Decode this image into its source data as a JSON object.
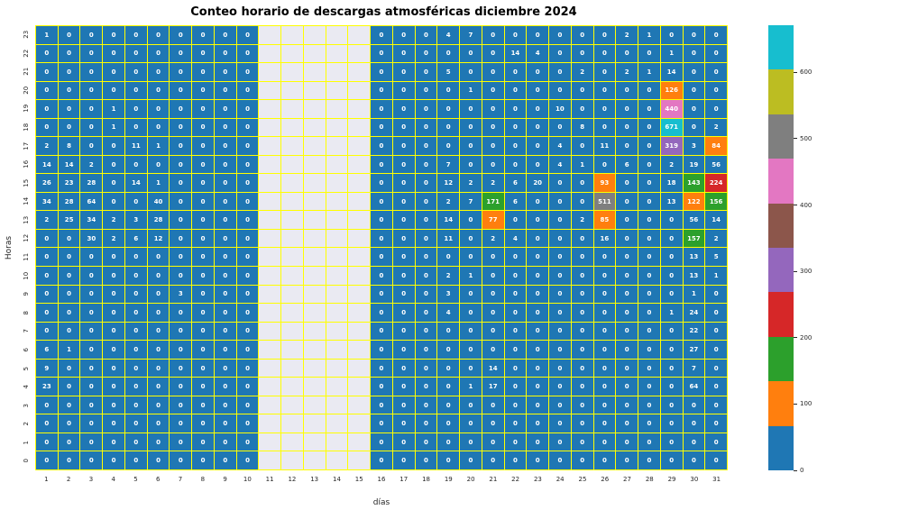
{
  "title": "Conteo horario de descargas atmosféricas diciembre 2024",
  "chart_data": {
    "type": "heatmap",
    "title": "Conteo horario de descargas atmosféricas diciembre 2024",
    "xlabel": "días",
    "ylabel": "Horas",
    "x": [
      1,
      2,
      3,
      4,
      5,
      6,
      7,
      8,
      9,
      10,
      11,
      12,
      13,
      14,
      15,
      16,
      17,
      18,
      19,
      20,
      21,
      22,
      23,
      24,
      25,
      26,
      27,
      28,
      29,
      30,
      31
    ],
    "y": [
      23,
      22,
      21,
      20,
      19,
      18,
      17,
      16,
      15,
      14,
      13,
      12,
      11,
      10,
      9,
      8,
      7,
      6,
      5,
      4,
      3,
      2,
      1,
      0
    ],
    "missing_days": [
      11,
      12,
      13,
      14,
      15
    ],
    "vmin": 0,
    "vmax": 671,
    "grid_on": true,
    "grid_color": "#ffff00",
    "missing_color": "#eaeaf2",
    "annotation_color": "#ffffff",
    "colormap": {
      "name": "tab10-discrete",
      "colors": [
        "#1f77b4",
        "#ff7f0e",
        "#2ca02c",
        "#d62728",
        "#9467bd",
        "#8c564b",
        "#e377c2",
        "#7f7f7f",
        "#bcbd22",
        "#17becf"
      ]
    },
    "colorbar_ticks": [
      0,
      100,
      200,
      300,
      400,
      500,
      600
    ],
    "legend_position": "right-colorbar",
    "values_by_hour_desc": [
      [
        1,
        0,
        0,
        0,
        0,
        0,
        0,
        0,
        0,
        0,
        null,
        null,
        null,
        null,
        null,
        0,
        0,
        0,
        4,
        7,
        0,
        0,
        0,
        0,
        0,
        0,
        2,
        1,
        0,
        0,
        0
      ],
      [
        0,
        0,
        0,
        0,
        0,
        0,
        0,
        0,
        0,
        0,
        null,
        null,
        null,
        null,
        null,
        0,
        0,
        0,
        0,
        0,
        0,
        14,
        4,
        0,
        0,
        0,
        0,
        0,
        1,
        0,
        0
      ],
      [
        0,
        0,
        0,
        0,
        0,
        0,
        0,
        0,
        0,
        0,
        null,
        null,
        null,
        null,
        null,
        0,
        0,
        0,
        5,
        0,
        0,
        0,
        0,
        0,
        2,
        0,
        2,
        1,
        14,
        0,
        0
      ],
      [
        0,
        0,
        0,
        0,
        0,
        0,
        0,
        0,
        0,
        0,
        null,
        null,
        null,
        null,
        null,
        0,
        0,
        0,
        0,
        1,
        0,
        0,
        0,
        0,
        0,
        0,
        0,
        0,
        126,
        0,
        0
      ],
      [
        0,
        0,
        0,
        1,
        0,
        0,
        0,
        0,
        0,
        0,
        null,
        null,
        null,
        null,
        null,
        0,
        0,
        0,
        0,
        0,
        0,
        0,
        0,
        10,
        0,
        0,
        0,
        0,
        440,
        0,
        0
      ],
      [
        0,
        0,
        0,
        1,
        0,
        0,
        0,
        0,
        0,
        0,
        null,
        null,
        null,
        null,
        null,
        0,
        0,
        0,
        0,
        0,
        0,
        0,
        0,
        0,
        8,
        0,
        0,
        0,
        671,
        0,
        2
      ],
      [
        2,
        8,
        0,
        0,
        11,
        1,
        0,
        0,
        0,
        0,
        null,
        null,
        null,
        null,
        null,
        0,
        0,
        0,
        0,
        0,
        0,
        0,
        0,
        4,
        0,
        11,
        0,
        0,
        319,
        3,
        84
      ],
      [
        14,
        14,
        2,
        0,
        0,
        0,
        0,
        0,
        0,
        0,
        null,
        null,
        null,
        null,
        null,
        0,
        0,
        0,
        7,
        0,
        0,
        0,
        0,
        4,
        1,
        0,
        6,
        0,
        2,
        19,
        56
      ],
      [
        26,
        23,
        28,
        0,
        14,
        1,
        0,
        0,
        0,
        0,
        null,
        null,
        null,
        null,
        null,
        0,
        0,
        0,
        12,
        2,
        2,
        6,
        20,
        0,
        0,
        93,
        0,
        0,
        18,
        143,
        224
      ],
      [
        34,
        28,
        64,
        0,
        0,
        40,
        0,
        0,
        0,
        0,
        null,
        null,
        null,
        null,
        null,
        0,
        0,
        0,
        2,
        7,
        171,
        6,
        0,
        0,
        0,
        511,
        0,
        0,
        13,
        122,
        156
      ],
      [
        2,
        25,
        34,
        2,
        3,
        28,
        0,
        0,
        0,
        0,
        null,
        null,
        null,
        null,
        null,
        0,
        0,
        0,
        14,
        0,
        77,
        0,
        0,
        0,
        2,
        85,
        0,
        0,
        0,
        56,
        14
      ],
      [
        0,
        0,
        30,
        2,
        6,
        12,
        0,
        0,
        0,
        0,
        null,
        null,
        null,
        null,
        null,
        0,
        0,
        0,
        11,
        0,
        2,
        4,
        0,
        0,
        0,
        16,
        0,
        0,
        0,
        157,
        2
      ],
      [
        0,
        0,
        0,
        0,
        0,
        0,
        0,
        0,
        0,
        0,
        null,
        null,
        null,
        null,
        null,
        0,
        0,
        0,
        0,
        0,
        0,
        0,
        0,
        0,
        0,
        0,
        0,
        0,
        0,
        13,
        5
      ],
      [
        0,
        0,
        0,
        0,
        0,
        0,
        0,
        0,
        0,
        0,
        null,
        null,
        null,
        null,
        null,
        0,
        0,
        0,
        2,
        1,
        0,
        0,
        0,
        0,
        0,
        0,
        0,
        0,
        0,
        13,
        1
      ],
      [
        0,
        0,
        0,
        0,
        0,
        0,
        3,
        0,
        0,
        0,
        null,
        null,
        null,
        null,
        null,
        0,
        0,
        0,
        3,
        0,
        0,
        0,
        0,
        0,
        0,
        0,
        0,
        0,
        0,
        1,
        0
      ],
      [
        0,
        0,
        0,
        0,
        0,
        0,
        0,
        0,
        0,
        0,
        null,
        null,
        null,
        null,
        null,
        0,
        0,
        0,
        4,
        0,
        0,
        0,
        0,
        0,
        0,
        0,
        0,
        0,
        1,
        24,
        0
      ],
      [
        0,
        0,
        0,
        0,
        0,
        0,
        0,
        0,
        0,
        0,
        null,
        null,
        null,
        null,
        null,
        0,
        0,
        0,
        0,
        0,
        0,
        0,
        0,
        0,
        0,
        0,
        0,
        0,
        0,
        22,
        0
      ],
      [
        6,
        1,
        0,
        0,
        0,
        0,
        0,
        0,
        0,
        0,
        null,
        null,
        null,
        null,
        null,
        0,
        0,
        0,
        0,
        0,
        0,
        0,
        0,
        0,
        0,
        0,
        0,
        0,
        0,
        27,
        0
      ],
      [
        9,
        0,
        0,
        0,
        0,
        0,
        0,
        0,
        0,
        0,
        null,
        null,
        null,
        null,
        null,
        0,
        0,
        0,
        0,
        0,
        14,
        0,
        0,
        0,
        0,
        0,
        0,
        0,
        0,
        7,
        0
      ],
      [
        23,
        0,
        0,
        0,
        0,
        0,
        0,
        0,
        0,
        0,
        null,
        null,
        null,
        null,
        null,
        0,
        0,
        0,
        0,
        1,
        17,
        0,
        0,
        0,
        0,
        0,
        0,
        0,
        0,
        64,
        0
      ],
      [
        0,
        0,
        0,
        0,
        0,
        0,
        0,
        0,
        0,
        0,
        null,
        null,
        null,
        null,
        null,
        0,
        0,
        0,
        0,
        0,
        0,
        0,
        0,
        0,
        0,
        0,
        0,
        0,
        0,
        0,
        0
      ],
      [
        0,
        0,
        0,
        0,
        0,
        0,
        0,
        0,
        0,
        0,
        null,
        null,
        null,
        null,
        null,
        0,
        0,
        0,
        0,
        0,
        0,
        0,
        0,
        0,
        0,
        0,
        0,
        0,
        0,
        0,
        0
      ],
      [
        0,
        0,
        0,
        0,
        0,
        0,
        0,
        0,
        0,
        0,
        null,
        null,
        null,
        null,
        null,
        0,
        0,
        0,
        0,
        0,
        0,
        0,
        0,
        0,
        0,
        0,
        0,
        0,
        0,
        0,
        0
      ],
      [
        0,
        0,
        0,
        0,
        0,
        0,
        0,
        0,
        0,
        0,
        null,
        null,
        null,
        null,
        null,
        0,
        0,
        0,
        0,
        0,
        0,
        0,
        0,
        0,
        0,
        0,
        0,
        0,
        0,
        0,
        0
      ]
    ]
  }
}
